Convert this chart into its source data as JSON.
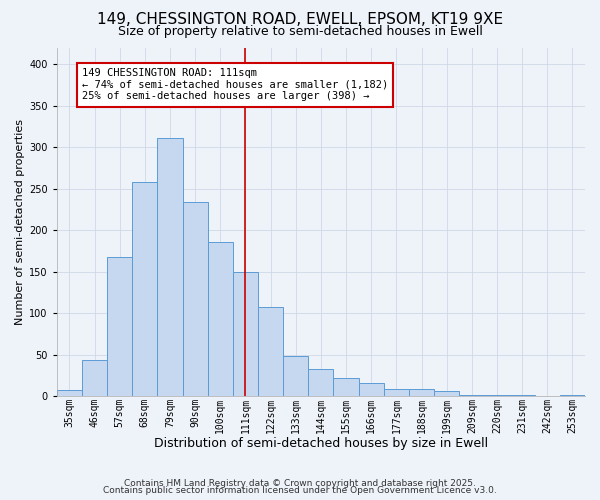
{
  "title": "149, CHESSINGTON ROAD, EWELL, EPSOM, KT19 9XE",
  "subtitle": "Size of property relative to semi-detached houses in Ewell",
  "xlabel": "Distribution of semi-detached houses by size in Ewell",
  "ylabel": "Number of semi-detached properties",
  "footer_line1": "Contains HM Land Registry data © Crown copyright and database right 2025.",
  "footer_line2": "Contains public sector information licensed under the Open Government Licence v3.0.",
  "annotation_line1": "149 CHESSINGTON ROAD: 111sqm",
  "annotation_line2": "← 74% of semi-detached houses are smaller (1,182)",
  "annotation_line3": "25% of semi-detached houses are larger (398) →",
  "bar_categories": [
    "35sqm",
    "46sqm",
    "57sqm",
    "68sqm",
    "79sqm",
    "90sqm",
    "100sqm",
    "111sqm",
    "122sqm",
    "133sqm",
    "144sqm",
    "155sqm",
    "166sqm",
    "177sqm",
    "188sqm",
    "199sqm",
    "209sqm",
    "220sqm",
    "231sqm",
    "242sqm",
    "253sqm"
  ],
  "bar_heights": [
    7,
    44,
    168,
    258,
    311,
    234,
    186,
    150,
    108,
    49,
    33,
    22,
    16,
    9,
    9,
    6,
    2,
    1,
    1,
    0,
    2
  ],
  "bar_color": "#c5d8f0",
  "bar_edge_color": "#5b9bd5",
  "vline_color": "#cc0000",
  "vline_position": 7,
  "grid_color": "#d0d8e8",
  "background_color": "#eef2f9",
  "annotation_box_edge_color": "#cc0000",
  "annotation_box_face_color": "#ffffff",
  "ylim": [
    0,
    420
  ],
  "title_fontsize": 11,
  "subtitle_fontsize": 9,
  "xlabel_fontsize": 9,
  "ylabel_fontsize": 8,
  "tick_fontsize": 7,
  "annotation_fontsize": 7.5,
  "footer_fontsize": 6.5
}
